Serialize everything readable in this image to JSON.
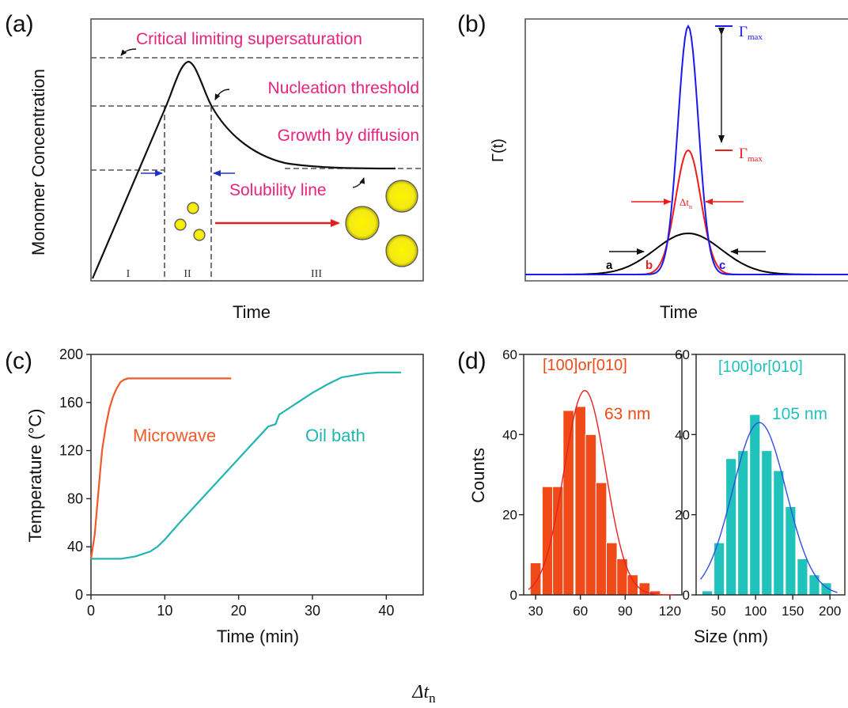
{
  "panels": {
    "a": {
      "panel_label": "(a)",
      "ylabel": "Monomer Concentration",
      "xlabel": "Time",
      "annotations": [
        "Critical limiting supersaturation",
        "Nucleation threshold",
        "Growth by diffusion",
        "Solubility line"
      ],
      "stage_labels": [
        "I",
        "II",
        "III"
      ],
      "colors": {
        "text": "#e8237f",
        "curve": "#111111",
        "dashed": "#555555",
        "arrow": "#e02020",
        "particle": "#f2ea15"
      }
    },
    "b": {
      "panel_label": "(b)",
      "ylabel": "Γ(t)",
      "xlabel": "Time",
      "gamma_label": "Γ",
      "max_sub": "max",
      "width_label": "Δt",
      "width_sub": "n",
      "curve_labels": [
        "a",
        "b",
        "c"
      ],
      "colors": {
        "a": "#000000",
        "b": "#ee1c1c",
        "c": "#1a1aee"
      }
    }
  },
  "chart_data": [
    {
      "panel_label": "(c)",
      "type": "line",
      "xlabel": "Time (min)",
      "ylabel": "Temperature (°C)",
      "xlim": [
        0,
        45
      ],
      "ylim": [
        0,
        200
      ],
      "xticks": [
        "0",
        "10",
        "20",
        "30",
        "40"
      ],
      "yticks": [
        "0",
        "40",
        "80",
        "120",
        "160",
        "200"
      ],
      "series": [
        {
          "name": "Microwave",
          "color": "#f05a28",
          "x": [
            0,
            0.5,
            1,
            1.5,
            2,
            2.5,
            3,
            3.5,
            4,
            4.5,
            5,
            10,
            15,
            19
          ],
          "y": [
            30,
            50,
            85,
            120,
            140,
            155,
            165,
            172,
            177,
            179,
            180,
            180,
            180,
            180
          ]
        },
        {
          "name": "Oil bath",
          "color": "#20b5b0",
          "x": [
            0,
            2,
            4,
            6,
            8,
            9,
            10,
            12,
            15,
            18,
            21,
            24,
            25,
            25.5,
            26,
            28,
            30,
            32,
            33,
            34,
            35,
            37,
            39,
            42
          ],
          "y": [
            30,
            30,
            30,
            32,
            36,
            40,
            46,
            60,
            80,
            100,
            120,
            140,
            142,
            150,
            152,
            160,
            168,
            175,
            178,
            181,
            182,
            184,
            185,
            185
          ]
        }
      ]
    },
    {
      "panel_label": "(d)",
      "type": "bar",
      "ylabel": "Counts",
      "subplot_title": "[100]or[010]",
      "annotation": "63 nm",
      "xlim": [
        22,
        128
      ],
      "ylim": [
        0,
        60
      ],
      "xticks": [
        "30",
        "60",
        "90",
        "120"
      ],
      "yticks": [
        "0",
        "20",
        "40",
        "60"
      ],
      "bin_width": 7.2,
      "bins": [
        30,
        38,
        45,
        52,
        60,
        67,
        74,
        81,
        88,
        95,
        103,
        110,
        117,
        124
      ],
      "values": [
        8,
        27,
        27,
        46,
        47,
        40,
        28,
        13,
        9,
        5,
        3,
        1,
        0,
        0
      ],
      "fit": {
        "mean": 63,
        "sd": 14,
        "peak": 51
      },
      "color": "#f04a18",
      "fit_color": "#e82020"
    },
    {
      "panel_label": "",
      "type": "bar",
      "xlabel": "Size (nm)",
      "subplot_title": "[100]or[010]",
      "annotation": "105 nm",
      "xlim": [
        20,
        220
      ],
      "ylim": [
        0,
        60
      ],
      "xticks": [
        "50",
        "100",
        "150",
        "200"
      ],
      "yticks": [
        "0",
        "20",
        "40",
        "60"
      ],
      "bin_width": 14,
      "bins": [
        35,
        51,
        67,
        83,
        99,
        115,
        131,
        147,
        163,
        179,
        195,
        211
      ],
      "values": [
        1,
        13,
        34,
        36,
        45,
        36,
        31,
        22,
        9,
        5,
        3,
        0
      ],
      "fit": {
        "mean": 105,
        "sd": 36,
        "peak": 43
      },
      "color": "#20c2bc",
      "fit_color": "#3050e0"
    }
  ],
  "caption": {
    "main": "Δt",
    "sub": "n"
  }
}
